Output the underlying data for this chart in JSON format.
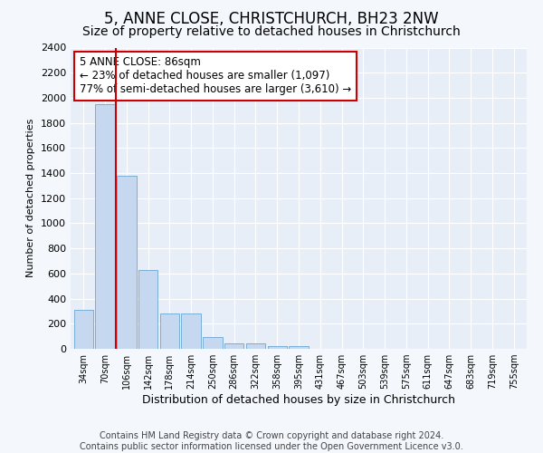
{
  "title": "5, ANNE CLOSE, CHRISTCHURCH, BH23 2NW",
  "subtitle": "Size of property relative to detached houses in Christchurch",
  "xlabel": "Distribution of detached houses by size in Christchurch",
  "ylabel": "Number of detached properties",
  "categories": [
    "34sqm",
    "70sqm",
    "106sqm",
    "142sqm",
    "178sqm",
    "214sqm",
    "250sqm",
    "286sqm",
    "322sqm",
    "358sqm",
    "395sqm",
    "431sqm",
    "467sqm",
    "503sqm",
    "539sqm",
    "575sqm",
    "611sqm",
    "647sqm",
    "683sqm",
    "719sqm",
    "755sqm"
  ],
  "values": [
    310,
    1950,
    1380,
    630,
    280,
    280,
    95,
    45,
    45,
    25,
    25,
    0,
    0,
    0,
    0,
    0,
    0,
    0,
    0,
    0,
    0
  ],
  "bar_color": "#c5d8f0",
  "bar_edge_color": "#7aaed6",
  "vline_x_index": 1.5,
  "vline_color": "#cc0000",
  "annotation_text": "5 ANNE CLOSE: 86sqm\n← 23% of detached houses are smaller (1,097)\n77% of semi-detached houses are larger (3,610) →",
  "annotation_box_color": "#ffffff",
  "annotation_box_edge_color": "#cc0000",
  "ylim": [
    0,
    2400
  ],
  "yticks": [
    0,
    200,
    400,
    600,
    800,
    1000,
    1200,
    1400,
    1600,
    1800,
    2000,
    2200,
    2400
  ],
  "background_color": "#f4f7fc",
  "plot_bg_color": "#e8eef8",
  "title_fontsize": 12,
  "subtitle_fontsize": 10,
  "xlabel_fontsize": 9,
  "ylabel_fontsize": 8,
  "footer_text": "Contains HM Land Registry data © Crown copyright and database right 2024.\nContains public sector information licensed under the Open Government Licence v3.0.",
  "footer_fontsize": 7
}
